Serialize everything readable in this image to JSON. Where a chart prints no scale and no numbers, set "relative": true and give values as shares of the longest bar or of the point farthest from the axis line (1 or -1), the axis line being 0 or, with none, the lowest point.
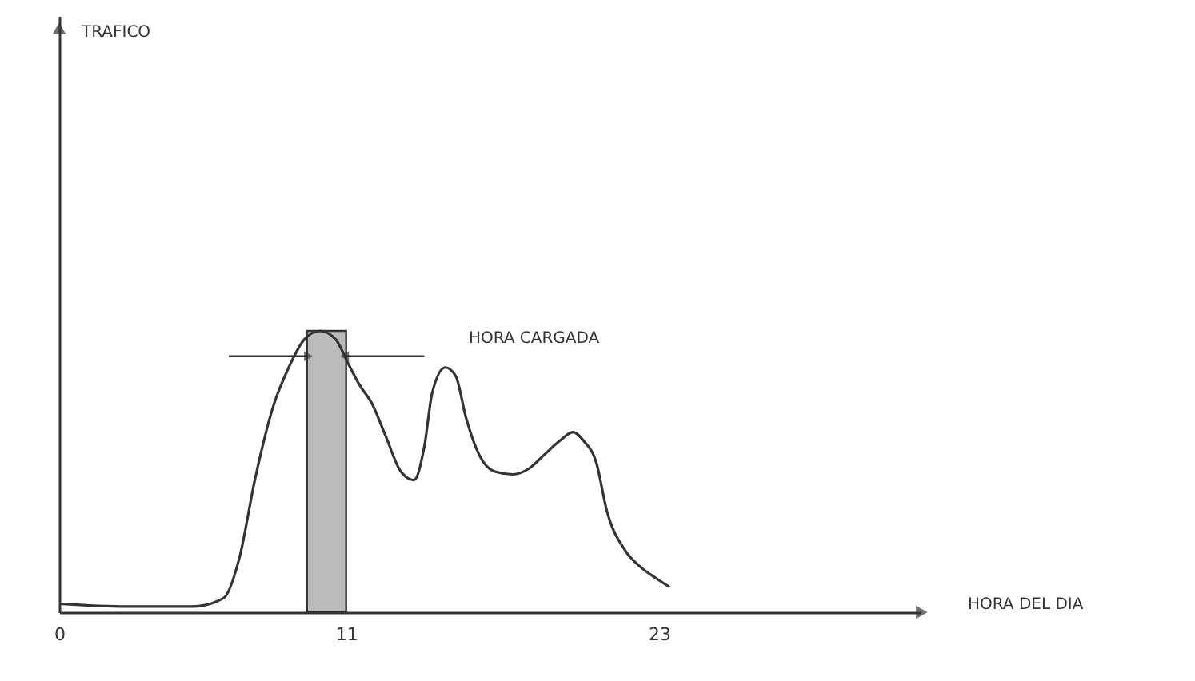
{
  "chart_data": {
    "type": "line",
    "relative": true,
    "xlabel": "HORA DEL DIA",
    "annotations": [
      "TRAFICO"
    ],
    "x": [
      0,
      2.6,
      5.1,
      6.3,
      6.9,
      7.5,
      8.2,
      8.8,
      9.4,
      10.0,
      10.6,
      11.1,
      11.5,
      12.0,
      12.5,
      13.1,
      13.6,
      14.0,
      14.3,
      14.8,
      15.2,
      15.6,
      16.1,
      16.7,
      17.4,
      18.0,
      18.6,
      19.2,
      19.7,
      20.1,
      20.6,
      21.0,
      21.7,
      22.3,
      22.9,
      23.4
    ],
    "series": [
      {
        "color": "#333333",
        "values": [
          0.03,
          0.02,
          0.02,
          0.05,
          0.19,
          0.47,
          0.73,
          0.87,
          0.97,
          1,
          0.97,
          0.88,
          0.81,
          0.74,
          0.63,
          0.5,
          0.47,
          0.59,
          0.78,
          0.87,
          0.84,
          0.69,
          0.56,
          0.5,
          0.49,
          0.51,
          0.56,
          0.61,
          0.64,
          0.61,
          0.53,
          0.36,
          0.22,
          0.16,
          0.12,
          0.09
        ]
      }
    ],
    "xlim": [
      0,
      33
    ],
    "xticks": [
      0,
      11,
      23
    ],
    "bands": [
      {
        "axis": "x",
        "from": 9.5,
        "to": 11.0,
        "label": "HORA CARGADA",
        "color": "#bbbbbb"
      }
    ],
    "grid": false,
    "marker": "none",
    "line_style": "solid"
  }
}
